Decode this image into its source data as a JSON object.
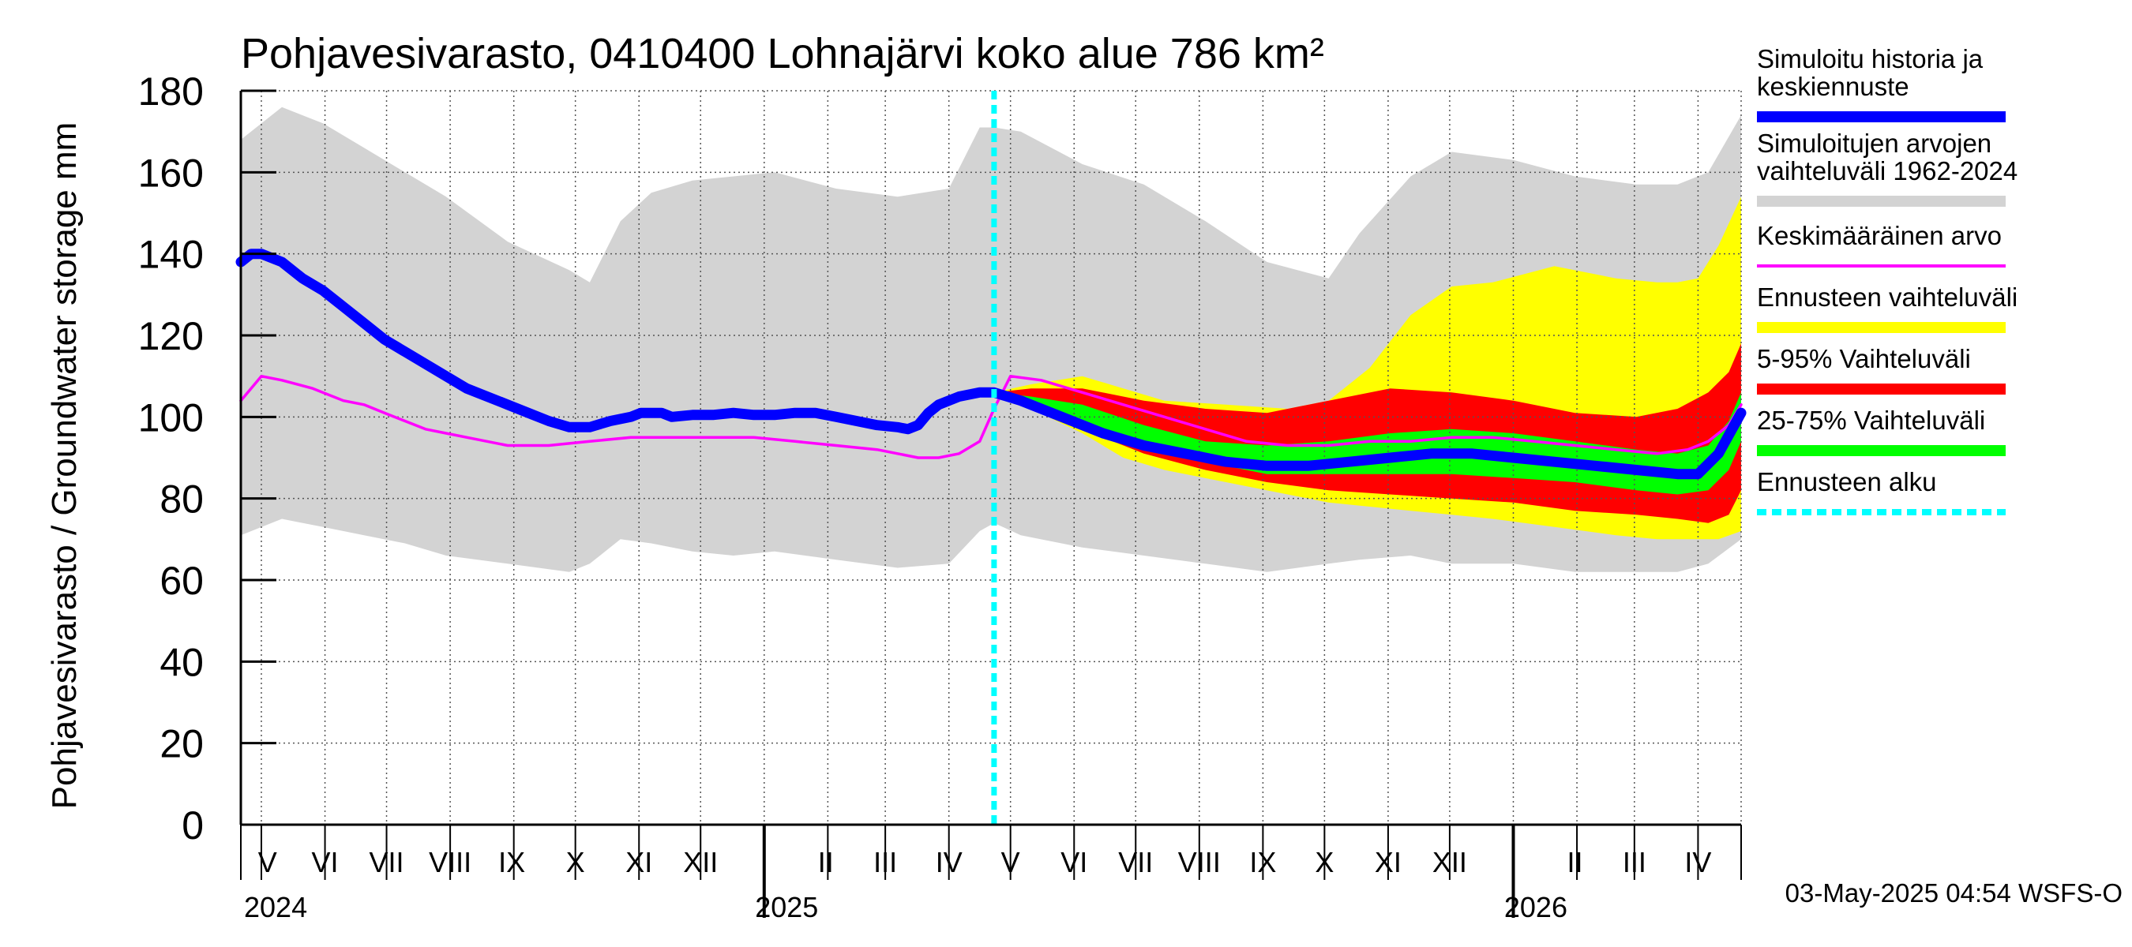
{
  "chart_data": {
    "type": "area",
    "title": "Pohjavesivarasto, 0410400 Lohnajärvi koko alue 786 km²",
    "ylabel": "Pohjavesivarasto / Groundwater storage   mm",
    "ylim": [
      0,
      180
    ],
    "yticks": [
      0,
      20,
      40,
      60,
      80,
      100,
      120,
      140,
      160,
      180
    ],
    "x_unit": "days since 2024-04-21",
    "xlim": [
      0,
      731
    ],
    "months": [
      {
        "label": "V",
        "x": 13
      },
      {
        "label": "VI",
        "x": 41
      },
      {
        "label": "VII",
        "x": 71
      },
      {
        "label": "VIII",
        "x": 102
      },
      {
        "label": "IX",
        "x": 132
      },
      {
        "label": "X",
        "x": 163
      },
      {
        "label": "XI",
        "x": 194
      },
      {
        "label": "XII",
        "x": 224
      },
      {
        "label": "I",
        "x": 255
      },
      {
        "label": "II",
        "x": 285
      },
      {
        "label": "III",
        "x": 314
      },
      {
        "label": "IV",
        "x": 345
      },
      {
        "label": "V",
        "x": 375
      },
      {
        "label": "VI",
        "x": 406
      },
      {
        "label": "VII",
        "x": 436
      },
      {
        "label": "VIII",
        "x": 467
      },
      {
        "label": "IX",
        "x": 498
      },
      {
        "label": "X",
        "x": 528
      },
      {
        "label": "XI",
        "x": 559
      },
      {
        "label": "XII",
        "x": 589
      },
      {
        "label": "I",
        "x": 620
      },
      {
        "label": "II",
        "x": 650
      },
      {
        "label": "III",
        "x": 679
      },
      {
        "label": "IV",
        "x": 710
      }
    ],
    "month_boundaries": [
      0,
      10,
      41,
      71,
      102,
      133,
      163,
      194,
      224,
      255,
      286,
      314,
      345,
      375,
      406,
      436,
      467,
      498,
      528,
      559,
      589,
      620,
      651,
      679,
      710,
      731
    ],
    "year_boundaries": [
      255,
      620
    ],
    "years": [
      {
        "label": "2024",
        "x": 0
      },
      {
        "label": "2025",
        "x": 249
      },
      {
        "label": "2026",
        "x": 614
      }
    ],
    "forecast_start_x": 367,
    "series": [
      {
        "name": "Simuloitujen arvojen vaihteluväli 1962-2024",
        "kind": "band",
        "color": "#d3d3d3",
        "x": [
          0,
          20,
          40,
          60,
          80,
          100,
          130,
          160,
          170,
          185,
          200,
          220,
          240,
          260,
          290,
          320,
          345,
          360,
          367,
          380,
          410,
          440,
          470,
          500,
          530,
          545,
          570,
          590,
          620,
          650,
          680,
          700,
          715,
          731
        ],
        "upper": [
          168,
          176,
          172,
          166,
          160,
          154,
          143,
          136,
          133,
          148,
          155,
          158,
          159,
          160,
          156,
          154,
          156,
          171,
          171,
          170,
          162,
          157,
          148,
          138,
          134,
          145,
          159,
          165,
          163,
          159,
          157,
          157,
          160,
          174
        ],
        "lower": [
          71,
          75,
          73,
          71,
          69,
          66,
          64,
          62,
          64,
          70,
          69,
          67,
          66,
          67,
          65,
          63,
          64,
          72,
          74,
          71,
          68,
          66,
          64,
          62,
          64,
          65,
          66,
          64,
          64,
          62,
          62,
          62,
          64,
          70
        ]
      },
      {
        "name": "Ennusteen vaihteluväli",
        "kind": "band",
        "color": "#ffff00",
        "x": [
          367,
          385,
          410,
          430,
          450,
          480,
          510,
          530,
          550,
          570,
          590,
          610,
          640,
          670,
          690,
          700,
          710,
          720,
          731
        ],
        "upper": [
          106,
          108,
          110,
          107,
          104,
          103,
          102,
          104,
          112,
          125,
          132,
          133,
          137,
          134,
          133,
          133,
          134,
          142,
          154
        ],
        "lower": [
          106,
          102,
          96,
          90,
          87,
          84,
          81,
          79,
          78,
          77,
          76,
          75,
          73,
          71,
          70,
          70,
          70,
          70,
          72
        ]
      },
      {
        "name": "5-95% Vaihteluväli",
        "kind": "band",
        "color": "#ff0000",
        "x": [
          367,
          385,
          410,
          440,
          470,
          500,
          530,
          560,
          590,
          620,
          650,
          680,
          700,
          715,
          725,
          731
        ],
        "upper": [
          106,
          107,
          107,
          104,
          102,
          101,
          104,
          107,
          106,
          104,
          101,
          100,
          102,
          106,
          111,
          118
        ],
        "lower": [
          106,
          102,
          97,
          91,
          87,
          84,
          82,
          81,
          80,
          79,
          77,
          76,
          75,
          74,
          76,
          82
        ]
      },
      {
        "name": "25-75% Vaihteluväli",
        "kind": "band",
        "color": "#00ff00",
        "x": [
          367,
          385,
          410,
          440,
          470,
          500,
          530,
          560,
          590,
          620,
          650,
          680,
          700,
          715,
          725,
          731
        ],
        "upper": [
          106,
          105,
          103,
          98,
          94,
          93,
          94,
          96,
          97,
          96,
          94,
          92,
          91,
          93,
          99,
          106
        ],
        "lower": [
          106,
          104,
          99,
          94,
          89,
          86,
          86,
          86,
          86,
          85,
          84,
          82,
          81,
          82,
          87,
          94
        ]
      },
      {
        "name": "Keskimääräinen arvo",
        "kind": "line",
        "color": "#ff00ff",
        "x": [
          0,
          10,
          20,
          35,
          50,
          60,
          70,
          80,
          90,
          100,
          110,
          130,
          150,
          170,
          190,
          210,
          230,
          250,
          270,
          290,
          310,
          320,
          330,
          340,
          350,
          360,
          367,
          375,
          390,
          410,
          430,
          450,
          470,
          490,
          510,
          530,
          550,
          570,
          590,
          610,
          630,
          650,
          670,
          690,
          705,
          715,
          725,
          731
        ],
        "y": [
          104,
          110,
          109,
          107,
          104,
          103,
          101,
          99,
          97,
          96,
          95,
          93,
          93,
          94,
          95,
          95,
          95,
          95,
          94,
          93,
          92,
          91,
          90,
          90,
          91,
          94,
          102,
          110,
          109,
          106,
          103,
          100,
          97,
          94,
          93,
          93,
          94,
          94,
          95,
          95,
          94,
          93,
          92,
          91,
          92,
          94,
          98,
          103
        ]
      },
      {
        "name": "Simuloitu historia ja keskiennuste",
        "kind": "line",
        "color": "#0000ff",
        "x": [
          0,
          5,
          10,
          20,
          30,
          40,
          50,
          60,
          70,
          80,
          90,
          100,
          110,
          120,
          130,
          140,
          150,
          160,
          170,
          180,
          190,
          195,
          200,
          205,
          210,
          220,
          230,
          240,
          250,
          260,
          270,
          280,
          290,
          300,
          310,
          320,
          325,
          330,
          335,
          340,
          350,
          360,
          367,
          380,
          400,
          420,
          440,
          460,
          480,
          500,
          520,
          540,
          560,
          580,
          600,
          620,
          640,
          660,
          680,
          700,
          710,
          720,
          731
        ],
        "y": [
          138,
          140,
          140,
          138,
          134,
          131,
          127,
          123,
          119,
          116,
          113,
          110,
          107,
          105,
          103,
          101,
          99,
          97.5,
          97.5,
          99,
          100,
          101,
          101,
          101,
          100,
          100.5,
          100.5,
          101,
          100.5,
          100.5,
          101,
          101,
          100,
          99,
          98,
          97.5,
          97,
          98,
          101,
          103,
          105,
          106,
          106,
          104,
          100,
          96,
          93,
          91,
          89,
          88,
          88,
          89,
          90,
          91,
          91,
          90,
          89,
          88,
          87,
          86,
          86,
          91,
          101
        ]
      }
    ],
    "legend": [
      {
        "label": "Simuloitu historia ja keskiennuste",
        "color": "#0000ff",
        "style": "thick"
      },
      {
        "label": "Simuloitujen arvojen vaihteluväli 1962-2024",
        "color": "#d3d3d3",
        "style": "thick"
      },
      {
        "label": "Keskimääräinen arvo",
        "color": "#ff00ff",
        "style": "thin"
      },
      {
        "label": "Ennusteen vaihteluväli",
        "color": "#ffff00",
        "style": "thick"
      },
      {
        "label": "5-95% Vaihteluväli",
        "color": "#ff0000",
        "style": "thick"
      },
      {
        "label": "25-75% Vaihteluväli",
        "color": "#00ff00",
        "style": "thick"
      },
      {
        "label": "Ennusteen alku",
        "color": "#00ffff",
        "style": "dashed"
      }
    ],
    "legend_display_lines": [
      [
        "Simuloitu historia ja",
        "keskiennuste"
      ],
      [
        "Simuloitujen arvojen",
        "vaihteluväli 1962-2024"
      ],
      [
        "Keskimääräinen arvo"
      ],
      [
        "Ennusteen vaihteluväli"
      ],
      [
        "5-95% Vaihteluväli"
      ],
      [
        "25-75% Vaihteluväli"
      ],
      [
        "Ennusteen alku"
      ]
    ]
  },
  "footer": "03-May-2025 04:54 WSFS-O"
}
